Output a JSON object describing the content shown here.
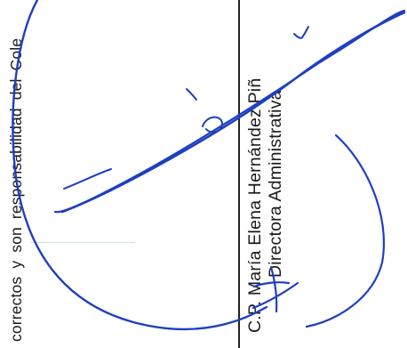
{
  "document": {
    "body_text": "correctos y son responsabilidad del Cole",
    "signer_name": "C.P. María Elena Hernández Piñ",
    "signer_title": "Directora Administrativa"
  },
  "colors": {
    "ink_text": "#1a1a1a",
    "ink_signature": "#1f3fbf",
    "rule_line": "#222222"
  }
}
